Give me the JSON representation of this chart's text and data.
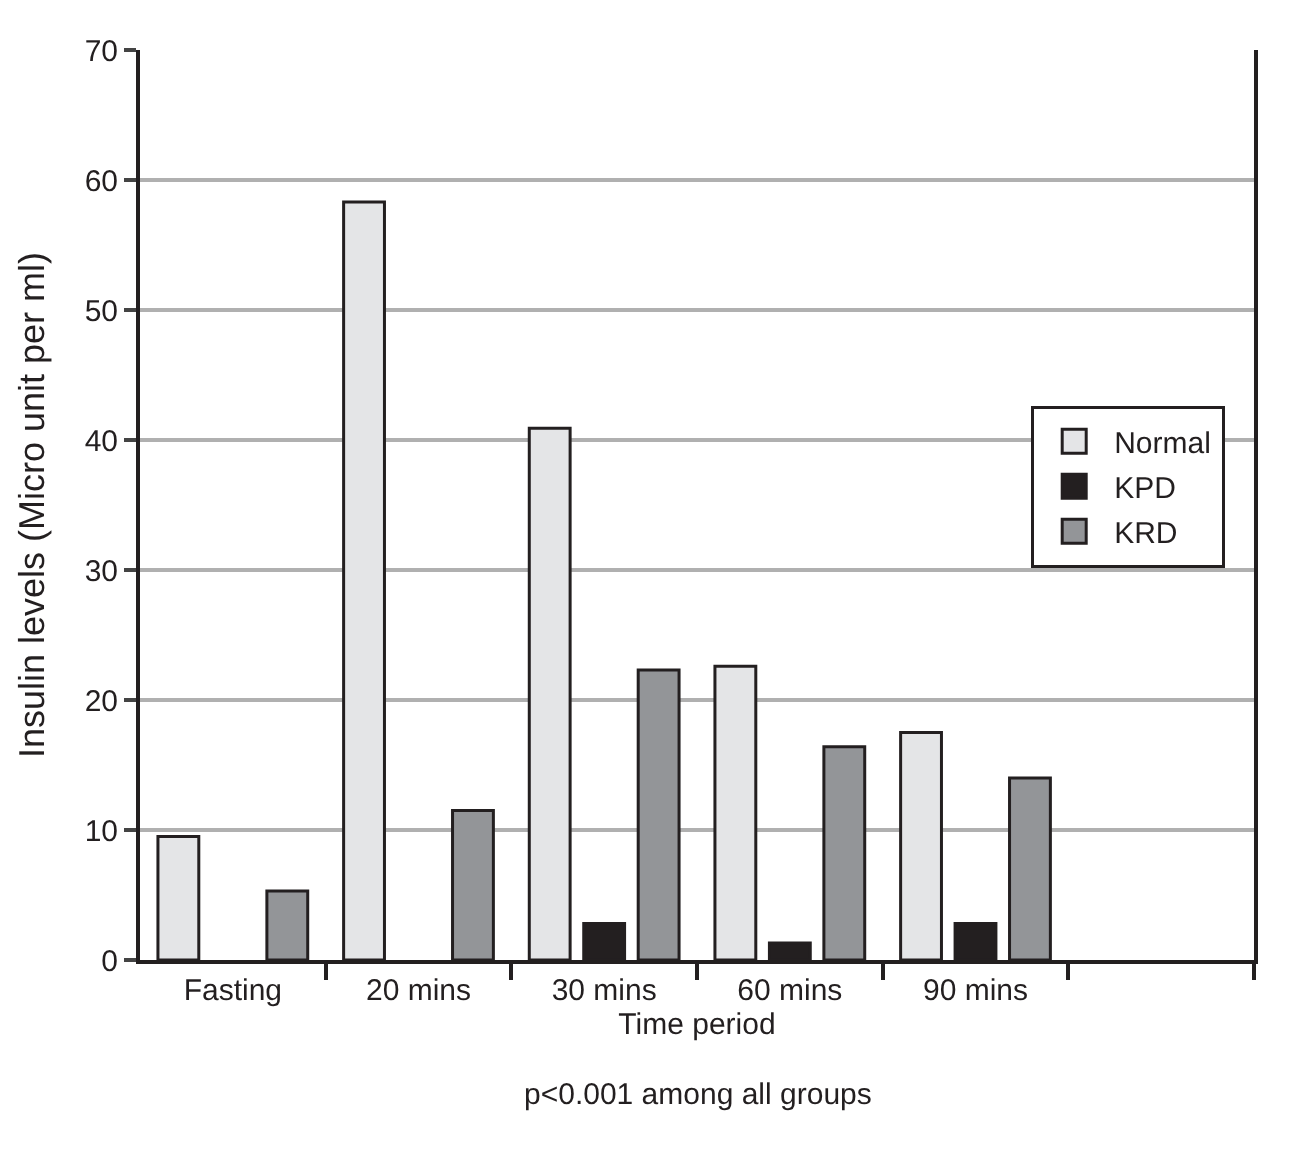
{
  "chart_data": {
    "type": "bar",
    "categories": [
      "Fasting",
      "20 mins",
      "30 mins",
      "60 mins",
      "90 mins",
      null
    ],
    "series": [
      {
        "name": "Normal",
        "color": "#e4e5e7",
        "values": [
          9.5,
          58.3,
          40.9,
          22.6,
          17.5,
          null
        ]
      },
      {
        "name": "KPD",
        "color": "#231f20",
        "values": [
          null,
          null,
          2.8,
          1.3,
          2.8,
          null
        ]
      },
      {
        "name": "KRD",
        "color": "#939598",
        "values": [
          5.3,
          11.5,
          22.3,
          16.4,
          14.0,
          null
        ]
      }
    ],
    "ylim": [
      0,
      70
    ],
    "yticks": [
      0,
      10,
      20,
      30,
      40,
      50,
      60,
      70
    ],
    "grid": "y",
    "legend": "right",
    "xlabel": "Time period",
    "ylabel": "Insulin levels (Micro unit per ml)",
    "annotations": [
      "p<0.001 among all groups"
    ]
  }
}
